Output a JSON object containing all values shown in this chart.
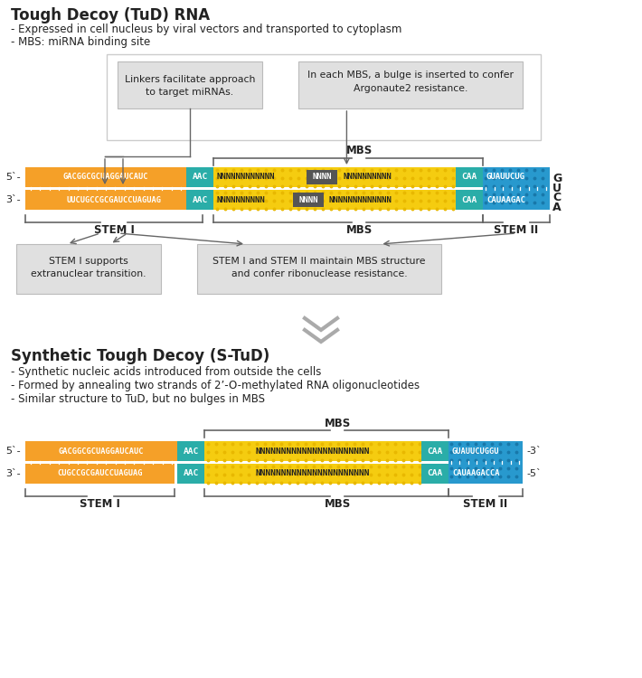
{
  "title1": "Tough Decoy (TuD) RNA",
  "bullet1_1": "- Expressed in cell nucleus by viral vectors and transported to cytoplasm",
  "bullet1_2": "- MBS: miRNA binding site",
  "title2": "Synthetic Tough Decoy (S-TuD)",
  "bullet2_1": "- Synthetic nucleic acids introduced from outside the cells",
  "bullet2_2": "- Formed by annealing two strands of 2’-O-methylated RNA oligonucleotides",
  "bullet2_3": "- Similar structure to TuD, but no bulges in MBS",
  "color_orange": "#F5A028",
  "color_teal": "#2AADA8",
  "color_yellow": "#F5CC10",
  "color_blue": "#2899CE",
  "color_darkgray": "#666666",
  "color_boxbg": "#E0E0E0",
  "color_white": "#FFFFFF",
  "color_black": "#222222",
  "color_chevron": "#AAAAAA",
  "seq_top": "GACGGCGCUAGGAUCAUC",
  "seq_bot": "UUCUGCCGCGAUCCUAGUAG",
  "seq_bot2_stud": "CUGCCGCGAUCCUAGUAG",
  "seq_right_top": "GUAUUCUG",
  "seq_right_bot": "CAUAAGAC",
  "seq_right_top2": "GUAUUCUGGU",
  "seq_right_bot2": "CAUAAGACCA",
  "mbs_full": "NNNNNNNNNNNNNNNNNNNNNN"
}
